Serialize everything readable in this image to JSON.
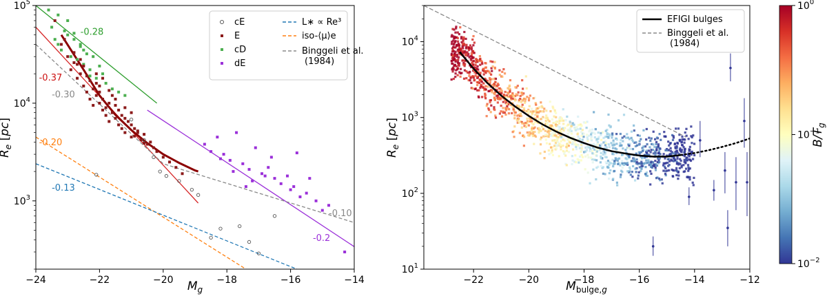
{
  "chart_data": [
    {
      "type": "scatter",
      "xlabel": "M_g",
      "ylabel": "R_e [pc]",
      "xlim": [
        -24,
        -14
      ],
      "ylim": [
        200,
        100000
      ],
      "y_scale": "log",
      "x_ticks": [
        "−24",
        "−22",
        "−20",
        "−18",
        "−16",
        "−14"
      ],
      "y_ticks": [
        {
          "value": 1000,
          "base": "10",
          "exp": "3"
        },
        {
          "value": 10000,
          "base": "10",
          "exp": "4"
        },
        {
          "value": 100000,
          "base": "10",
          "exp": "5"
        }
      ],
      "legend_placement": "top-right",
      "legend": [
        {
          "label": "cE",
          "kind": "circle",
          "color": "#555555"
        },
        {
          "label": "E",
          "kind": "square",
          "color": "#8b1a1a"
        },
        {
          "label": "cD",
          "kind": "square",
          "color": "#4caf50"
        },
        {
          "label": "dE",
          "kind": "square",
          "color": "#9b30d9"
        },
        {
          "label": "L∗ ∝ Re³",
          "kind": "dash",
          "color": "#1f77b4"
        },
        {
          "label": "iso-⟨μ⟩e",
          "kind": "dash",
          "color": "#ff7f0e"
        },
        {
          "label": "Binggeli et al.",
          "label2": "(1984)",
          "kind": "dash",
          "color": "#888888"
        }
      ],
      "lines": [
        {
          "name": "cD fit",
          "color": "#2e9e2e",
          "dash": false,
          "x": [
            -24,
            -20.2
          ],
          "y": [
            100000,
            10000
          ]
        },
        {
          "name": "E fit",
          "color": "#d62728",
          "dash": false,
          "x": [
            -24,
            -18.9
          ],
          "y": [
            60000,
            950
          ]
        },
        {
          "name": "E curve",
          "color": "#8b0000",
          "dash": false,
          "width": 3,
          "x": [
            -23.2,
            -22.5,
            -22,
            -21.5,
            -21,
            -20.5,
            -20,
            -19.5,
            -19,
            -18.9
          ],
          "y": [
            50000,
            22000,
            12000,
            7600,
            5300,
            3900,
            3000,
            2450,
            2050,
            2000
          ]
        },
        {
          "name": "dE fit",
          "color": "#9b30d9",
          "dash": false,
          "x": [
            -20.5,
            -14
          ],
          "y": [
            8500,
            340
          ]
        },
        {
          "name": "Binggeli",
          "color": "#888888",
          "dash": true,
          "x": [
            -24,
            -20,
            -14
          ],
          "y": [
            40000,
            2400,
            600
          ]
        },
        {
          "name": "iso-mu",
          "color": "#ff7f0e",
          "dash": true,
          "x": [
            -24,
            -17.4
          ],
          "y": [
            4500,
            200
          ]
        },
        {
          "name": "L-R3",
          "color": "#1f77b4",
          "dash": true,
          "x": [
            -24,
            -15.8
          ],
          "y": [
            2400,
            200
          ]
        }
      ],
      "annotations": [
        {
          "text": "-0.28",
          "x": -22.6,
          "y": 50000,
          "color": "#2e9e2e"
        },
        {
          "text": "-0.37",
          "x": -23.9,
          "y": 17000,
          "color": "#cc1111"
        },
        {
          "text": "-0.30",
          "x": -23.5,
          "y": 11500,
          "color": "#888888"
        },
        {
          "text": "-0.20",
          "x": -23.9,
          "y": 3700,
          "color": "#ff7f0e"
        },
        {
          "text": "-0.13",
          "x": -23.5,
          "y": 1270,
          "color": "#1f77b4"
        },
        {
          "text": "-0.10",
          "x": -14.8,
          "y": 700,
          "color": "#888888"
        },
        {
          "text": "-0.2",
          "x": -15.3,
          "y": 390,
          "color": "#9b30d9"
        }
      ],
      "series": [
        {
          "name": "cD",
          "marker": "square",
          "color": "#4caf50",
          "x": [
            -23.6,
            -23.5,
            -23.4,
            -23.3,
            -23.2,
            -23.1,
            -23.0,
            -22.9,
            -22.8,
            -22.7,
            -22.6,
            -22.5,
            -22.4,
            -22.3,
            -22.2,
            -22.1,
            -22.0,
            -21.9,
            -21.8,
            -21.6,
            -21.4,
            -21.2,
            -23.0,
            -22.6,
            -22.3,
            -23.3,
            -22.8,
            -22.5
          ],
          "y": [
            90000,
            60000,
            45000,
            80000,
            35000,
            55000,
            70000,
            30000,
            45000,
            28000,
            40000,
            25000,
            32000,
            22000,
            30000,
            18000,
            24000,
            20000,
            16000,
            14000,
            13000,
            12000,
            50000,
            38000,
            19000,
            40000,
            52000,
            35000
          ]
        },
        {
          "name": "E",
          "marker": "square",
          "color": "#8b1a1a",
          "x": [
            -23.4,
            -23.2,
            -23.0,
            -22.9,
            -22.8,
            -22.7,
            -22.6,
            -22.5,
            -22.5,
            -22.4,
            -22.3,
            -22.3,
            -22.2,
            -22.2,
            -22.1,
            -22.1,
            -22.0,
            -22.0,
            -21.9,
            -21.9,
            -21.8,
            -21.8,
            -21.7,
            -21.7,
            -21.6,
            -21.6,
            -21.5,
            -21.5,
            -21.4,
            -21.4,
            -21.3,
            -21.3,
            -21.2,
            -21.2,
            -21.1,
            -21.0,
            -21.0,
            -20.9,
            -20.8,
            -20.7,
            -20.6,
            -20.5,
            -20.4,
            -20.3,
            -20.2,
            -20.0,
            -19.8,
            -19.6,
            -19.4,
            -22.7,
            -22.4,
            -22.0,
            -21.7,
            -21.2,
            -20.9,
            -20.6,
            -23.1,
            -22.8,
            -22.6,
            -22.1,
            -21.5,
            -20.8,
            -21.0,
            -21.9
          ],
          "y": [
            70000,
            40000,
            30000,
            22000,
            26000,
            18000,
            20000,
            15000,
            24000,
            13000,
            17000,
            11000,
            14000,
            9500,
            12000,
            16000,
            10000,
            13000,
            8500,
            11000,
            9000,
            7500,
            10000,
            6500,
            8000,
            12000,
            7000,
            9500,
            6000,
            8500,
            5500,
            7500,
            5000,
            7000,
            6500,
            4500,
            6000,
            5500,
            5000,
            4200,
            4800,
            3800,
            4000,
            3500,
            3200,
            2800,
            2500,
            2200,
            1900,
            25000,
            19000,
            15000,
            13500,
            9000,
            4600,
            3900,
            45000,
            33000,
            28000,
            20000,
            11000,
            5200,
            8000,
            18000
          ]
        },
        {
          "name": "cE",
          "marker": "circle",
          "color": "#555555",
          "x": [
            -22.1,
            -21.0,
            -20.6,
            -20.3,
            -20.1,
            -19.9,
            -19.5,
            -19.1,
            -18.9,
            -18.5,
            -18.2,
            -17.6,
            -17.3,
            -17.0,
            -16.5
          ],
          "y": [
            1850,
            6800,
            4200,
            2800,
            2000,
            1800,
            1600,
            1300,
            1150,
            420,
            520,
            550,
            380,
            290,
            700
          ]
        },
        {
          "name": "dE",
          "marker": "square",
          "color": "#9b30d9",
          "x": [
            -18.7,
            -18.5,
            -18.3,
            -18.1,
            -17.9,
            -17.7,
            -17.5,
            -17.3,
            -17.1,
            -16.9,
            -16.7,
            -16.5,
            -16.3,
            -16.1,
            -15.9,
            -15.7,
            -15.5,
            -15.2,
            -14.8,
            -14.3,
            -17.8,
            -17.2,
            -16.6,
            -16.0,
            -15.4,
            -18.2,
            -17.4,
            -16.8,
            -15.8,
            -15.0
          ],
          "y": [
            3800,
            3200,
            4500,
            3000,
            2600,
            5000,
            2400,
            2100,
            3500,
            1900,
            2200,
            1700,
            1500,
            1800,
            1400,
            1100,
            1200,
            1000,
            900,
            300,
            2000,
            1600,
            2800,
            1300,
            1700,
            2700,
            1400,
            1800,
            3100,
            800
          ]
        }
      ]
    },
    {
      "type": "scatter",
      "xlabel": "M_bulge,g",
      "ylabel": "R_e [pc]",
      "xlim": [
        -23.8,
        -12
      ],
      "ylim": [
        10,
        30000
      ],
      "y_scale": "log",
      "x_ticks": [
        "−22",
        "−20",
        "−18",
        "−16",
        "−14",
        "−12"
      ],
      "y_ticks": [
        {
          "value": 10,
          "base": "10",
          "exp": "1"
        },
        {
          "value": 100,
          "base": "10",
          "exp": "2"
        },
        {
          "value": 1000,
          "base": "10",
          "exp": "3"
        },
        {
          "value": 10000,
          "base": "10",
          "exp": "4"
        }
      ],
      "legend_placement": "top-right",
      "legend": [
        {
          "label": "EFIGI bulges",
          "kind": "solid",
          "color": "#000000"
        },
        {
          "label": "Binggeli et al.",
          "label2": "(1984)",
          "kind": "dash",
          "color": "#888888"
        }
      ],
      "curve": {
        "x": [
          -22.5,
          -22,
          -21.5,
          -21,
          -20.5,
          -20,
          -19.5,
          -19,
          -18.5,
          -18,
          -17.5,
          -17,
          -16.5,
          -16,
          -15.5,
          -15,
          -14.5
        ],
        "y": [
          7300,
          4400,
          2850,
          1950,
          1400,
          1050,
          810,
          650,
          540,
          460,
          400,
          360,
          335,
          315,
          305,
          305,
          320
        ]
      },
      "dotted": {
        "x": [
          -14.5,
          -14,
          -13.5,
          -13,
          -12.5,
          -12
        ],
        "y": [
          320,
          340,
          370,
          410,
          460,
          530
        ]
      },
      "binggeli": {
        "x": [
          -23.8,
          -14.3
        ],
        "y": [
          30000,
          550
        ]
      },
      "colorbar": {
        "label": "B/T_g",
        "min": 0.01,
        "max": 1,
        "ticks": [
          {
            "value": 1,
            "base": "10",
            "exp": "0"
          },
          {
            "value": 0.1,
            "base": "10",
            "exp": "−1"
          },
          {
            "value": 0.01,
            "base": "10",
            "exp": "−2"
          }
        ],
        "colors": [
          "#313695",
          "#4575b4",
          "#74add1",
          "#abd9e9",
          "#e0f3f8",
          "#ffffbf",
          "#fee090",
          "#fdae61",
          "#f46d43",
          "#d73027",
          "#a50026"
        ]
      },
      "error_points": [
        {
          "x": -12.7,
          "y": 4500,
          "lo": 3000,
          "hi": 7000
        },
        {
          "x": -12.2,
          "y": 900,
          "lo": 400,
          "hi": 1800
        },
        {
          "x": -13.8,
          "y": 500,
          "lo": 300,
          "hi": 900
        },
        {
          "x": -12.9,
          "y": 200,
          "lo": 100,
          "hi": 350
        },
        {
          "x": -12.5,
          "y": 140,
          "lo": 60,
          "hi": 300
        },
        {
          "x": -12.1,
          "y": 140,
          "lo": 50,
          "hi": 350
        },
        {
          "x": -13.3,
          "y": 110,
          "lo": 80,
          "hi": 150
        },
        {
          "x": -12.8,
          "y": 35,
          "lo": 20,
          "hi": 60
        },
        {
          "x": -15.5,
          "y": 20,
          "lo": 15,
          "hi": 27
        },
        {
          "x": -14.2,
          "y": 90,
          "lo": 70,
          "hi": 120
        }
      ]
    }
  ]
}
